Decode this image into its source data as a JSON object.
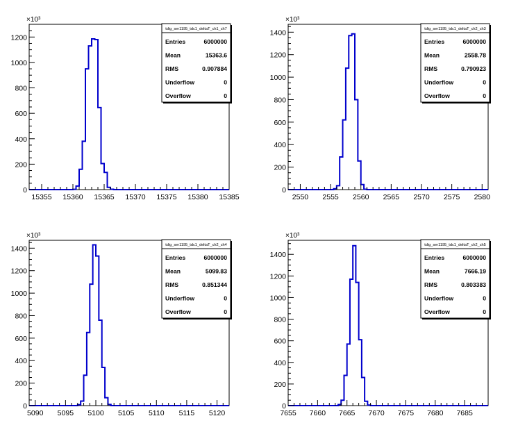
{
  "chart_data": [
    {
      "type": "histogram",
      "title": "tdig_ser1195_tdc1_deltaT_ch1_ch7",
      "multiplier": "×10³",
      "xlim": [
        15353,
        15385
      ],
      "ylim": [
        0,
        1300
      ],
      "bin_width": 0.5,
      "x_ticks": [
        15355,
        15360,
        15365,
        15370,
        15375,
        15380,
        15385
      ],
      "y_ticks": [
        0,
        200,
        400,
        600,
        800,
        1000,
        1200
      ],
      "bins_start": 15359.0,
      "values": [
        0,
        0,
        2,
        28,
        160,
        380,
        950,
        1130,
        1185,
        1180,
        645,
        205,
        135,
        18,
        3,
        0
      ],
      "stats": {
        "entries_label": "Entries",
        "entries": "6000000",
        "mean_label": "Mean",
        "mean": "15363.6",
        "rms_label": "RMS",
        "rms": "0.907884",
        "underflow_label": "Underflow",
        "underflow": "0",
        "overflow_label": "Overflow",
        "overflow": "0"
      }
    },
    {
      "type": "histogram",
      "title": "tdig_ser1195_tdc1_deltaT_ch2_ch3",
      "multiplier": "×10³",
      "xlim": [
        2548,
        2581
      ],
      "ylim": [
        0,
        1470
      ],
      "bin_width": 0.5,
      "x_ticks": [
        2550,
        2555,
        2560,
        2565,
        2570,
        2575,
        2580
      ],
      "y_ticks": [
        0,
        200,
        400,
        600,
        800,
        1000,
        1200,
        1400
      ],
      "bins_start": 2555.0,
      "values": [
        0,
        8,
        35,
        290,
        620,
        1080,
        1370,
        1385,
        800,
        255,
        45,
        3,
        0
      ],
      "stats": {
        "entries_label": "Entries",
        "entries": "6000000",
        "mean_label": "Mean",
        "mean": "2558.78",
        "rms_label": "RMS",
        "rms": "0.790923",
        "underflow_label": "Underflow",
        "underflow": "0",
        "overflow_label": "Overflow",
        "overflow": "0"
      }
    },
    {
      "type": "histogram",
      "title": "tdig_ser1195_tdc1_deltaT_ch2_ch4",
      "multiplier": "×10³",
      "xlim": [
        5089,
        5122
      ],
      "ylim": [
        0,
        1470
      ],
      "bin_width": 0.5,
      "x_ticks": [
        5090,
        5095,
        5100,
        5105,
        5110,
        5115,
        5120
      ],
      "y_ticks": [
        0,
        200,
        400,
        600,
        800,
        1000,
        1200,
        1400
      ],
      "bins_start": 5096.5,
      "values": [
        0,
        8,
        40,
        270,
        650,
        1080,
        1430,
        1330,
        760,
        340,
        70,
        10,
        0
      ],
      "stats": {
        "entries_label": "Entries",
        "entries": "6000000",
        "mean_label": "Mean",
        "mean": "5099.83",
        "rms_label": "RMS",
        "rms": "0.851344",
        "underflow_label": "Underflow",
        "underflow": "0",
        "overflow_label": "Overflow",
        "overflow": "0"
      }
    },
    {
      "type": "histogram",
      "title": "tdig_ser1195_tdc1_deltaT_ch2_ch5",
      "multiplier": "×10³",
      "xlim": [
        7655,
        7689
      ],
      "ylim": [
        0,
        1530
      ],
      "bin_width": 0.5,
      "x_ticks": [
        7655,
        7660,
        7665,
        7670,
        7675,
        7680,
        7685
      ],
      "y_ticks": [
        0,
        200,
        400,
        600,
        800,
        1000,
        1200,
        1400
      ],
      "bins_start": 7663.0,
      "values": [
        0,
        10,
        50,
        280,
        570,
        1170,
        1480,
        1140,
        610,
        260,
        40,
        5,
        0
      ],
      "stats": {
        "entries_label": "Entries",
        "entries": "6000000",
        "mean_label": "Mean",
        "mean": "7666.19",
        "rms_label": "RMS",
        "rms": "0.803383",
        "underflow_label": "Underflow",
        "underflow": "0",
        "overflow_label": "Overflow",
        "overflow": "0"
      }
    }
  ],
  "colors": {
    "histogram_line": "#0000cc",
    "axis": "#000000",
    "background": "#ffffff"
  }
}
